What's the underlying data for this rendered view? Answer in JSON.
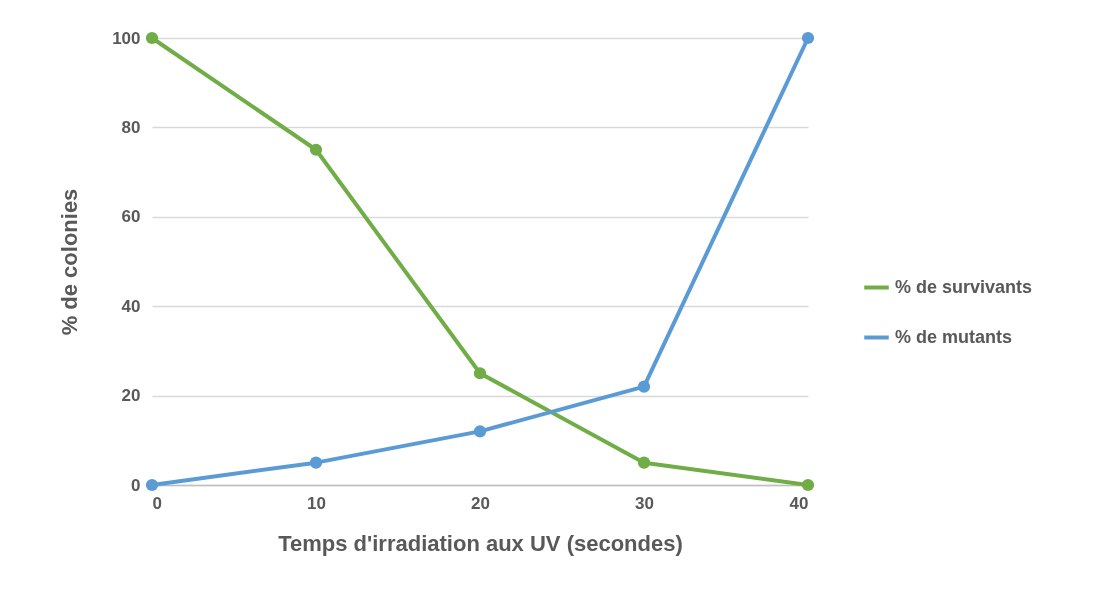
{
  "chart_data": {
    "type": "line",
    "xlabel": "Temps d'irradiation aux UV (secondes)",
    "ylabel": "% de colonies",
    "x": [
      0,
      10,
      20,
      30,
      40
    ],
    "series": [
      {
        "name": "% de survivants",
        "color": "#70ad47",
        "values": [
          100,
          75,
          25,
          5,
          0
        ]
      },
      {
        "name": "% de mutants",
        "color": "#5b9bd5",
        "values": [
          0,
          5,
          12,
          22,
          100
        ]
      }
    ],
    "xlim": [
      0,
      40
    ],
    "xticks": [
      0,
      10,
      20,
      30,
      40
    ],
    "ylim": [
      0,
      100
    ],
    "yticks": [
      0,
      20,
      40,
      60,
      80,
      100
    ],
    "grid": "y",
    "legend": "right",
    "marker": "circle",
    "line_style": "solid"
  }
}
